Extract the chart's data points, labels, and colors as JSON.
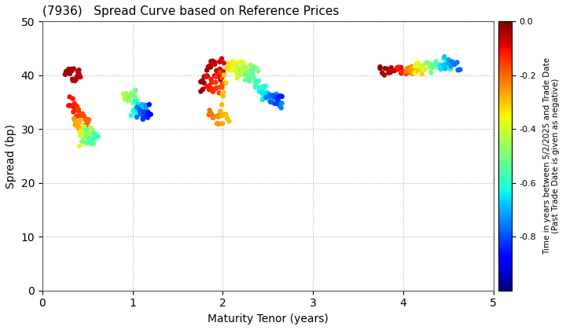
{
  "title": "(7936)   Spread Curve based on Reference Prices",
  "xlabel": "Maturity Tenor (years)",
  "ylabel": "Spread (bp)",
  "colorbar_label": "Time in years between 5/2/2025 and Trade Date\n(Past Trade Date is given as negative)",
  "xlim": [
    0,
    5
  ],
  "ylim": [
    0,
    50
  ],
  "xticks": [
    0,
    1,
    2,
    3,
    4,
    5
  ],
  "yticks": [
    0,
    10,
    20,
    30,
    40,
    50
  ],
  "cmap_min": -1.0,
  "cmap_max": 0.0,
  "colorbar_ticks": [
    0.0,
    -0.2,
    -0.4,
    -0.6,
    -0.8
  ],
  "background_color": "#ffffff",
  "grid_color": "#b0b0b0",
  "figsize": [
    7.2,
    4.2
  ],
  "dpi": 100
}
